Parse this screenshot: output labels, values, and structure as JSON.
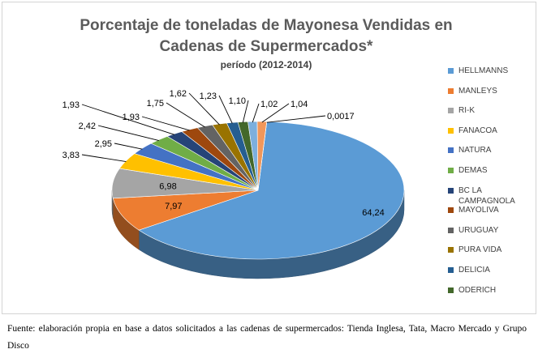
{
  "chart_data": {
    "type": "pie",
    "title_line1": "Porcentaje de toneladas de Mayonesa Vendidas en",
    "title_line2": "Cadenas de Supermercados*",
    "subtitle": "período (2012-2014)",
    "slices": [
      {
        "label": "HELLMANNS",
        "value": 64.24,
        "display": "64,24",
        "color": "#5b9bd5"
      },
      {
        "label": "MANLEYS",
        "value": 7.97,
        "display": "7,97",
        "color": "#ed7d31"
      },
      {
        "label": "RI-K",
        "value": 6.98,
        "display": "6,98",
        "color": "#a5a5a5"
      },
      {
        "label": "FANACOA",
        "value": 3.83,
        "display": "3,83",
        "color": "#ffc000"
      },
      {
        "label": "NATURA",
        "value": 2.95,
        "display": "2,95",
        "color": "#4472c4"
      },
      {
        "label": "DEMAS",
        "value": 2.42,
        "display": "2,42",
        "color": "#70ad47"
      },
      {
        "label": "BC LA CAMPAGNOLA",
        "value": 1.93,
        "display": "1,93",
        "color": "#264478"
      },
      {
        "label": "MAYOLIVA",
        "value": 1.93,
        "display": "1,93",
        "color": "#9e480e"
      },
      {
        "label": "URUGUAY",
        "value": 1.75,
        "display": "1,75",
        "color": "#636363"
      },
      {
        "label": "PURA VIDA",
        "value": 1.62,
        "display": "1,62",
        "color": "#997300"
      },
      {
        "label": "DELICIA",
        "value": 1.23,
        "display": "1,23",
        "color": "#255e91"
      },
      {
        "label": "ODERICH",
        "value": 1.1,
        "display": "1,10",
        "color": "#43682b"
      },
      {
        "label": "",
        "value": 1.02,
        "display": "1,02",
        "color": "#7cafdd"
      },
      {
        "label": "",
        "value": 1.04,
        "display": "1,04",
        "color": "#f1975a"
      },
      {
        "label": "",
        "value": 0.0017,
        "display": "0,0017",
        "color": "#b7b7b7"
      }
    ]
  },
  "caption": "Fuente: elaboración propia en base a datos solicitados a las cadenas de supermercados: Tienda Inglesa, Tata, Macro Mercado y Grupo Disco"
}
